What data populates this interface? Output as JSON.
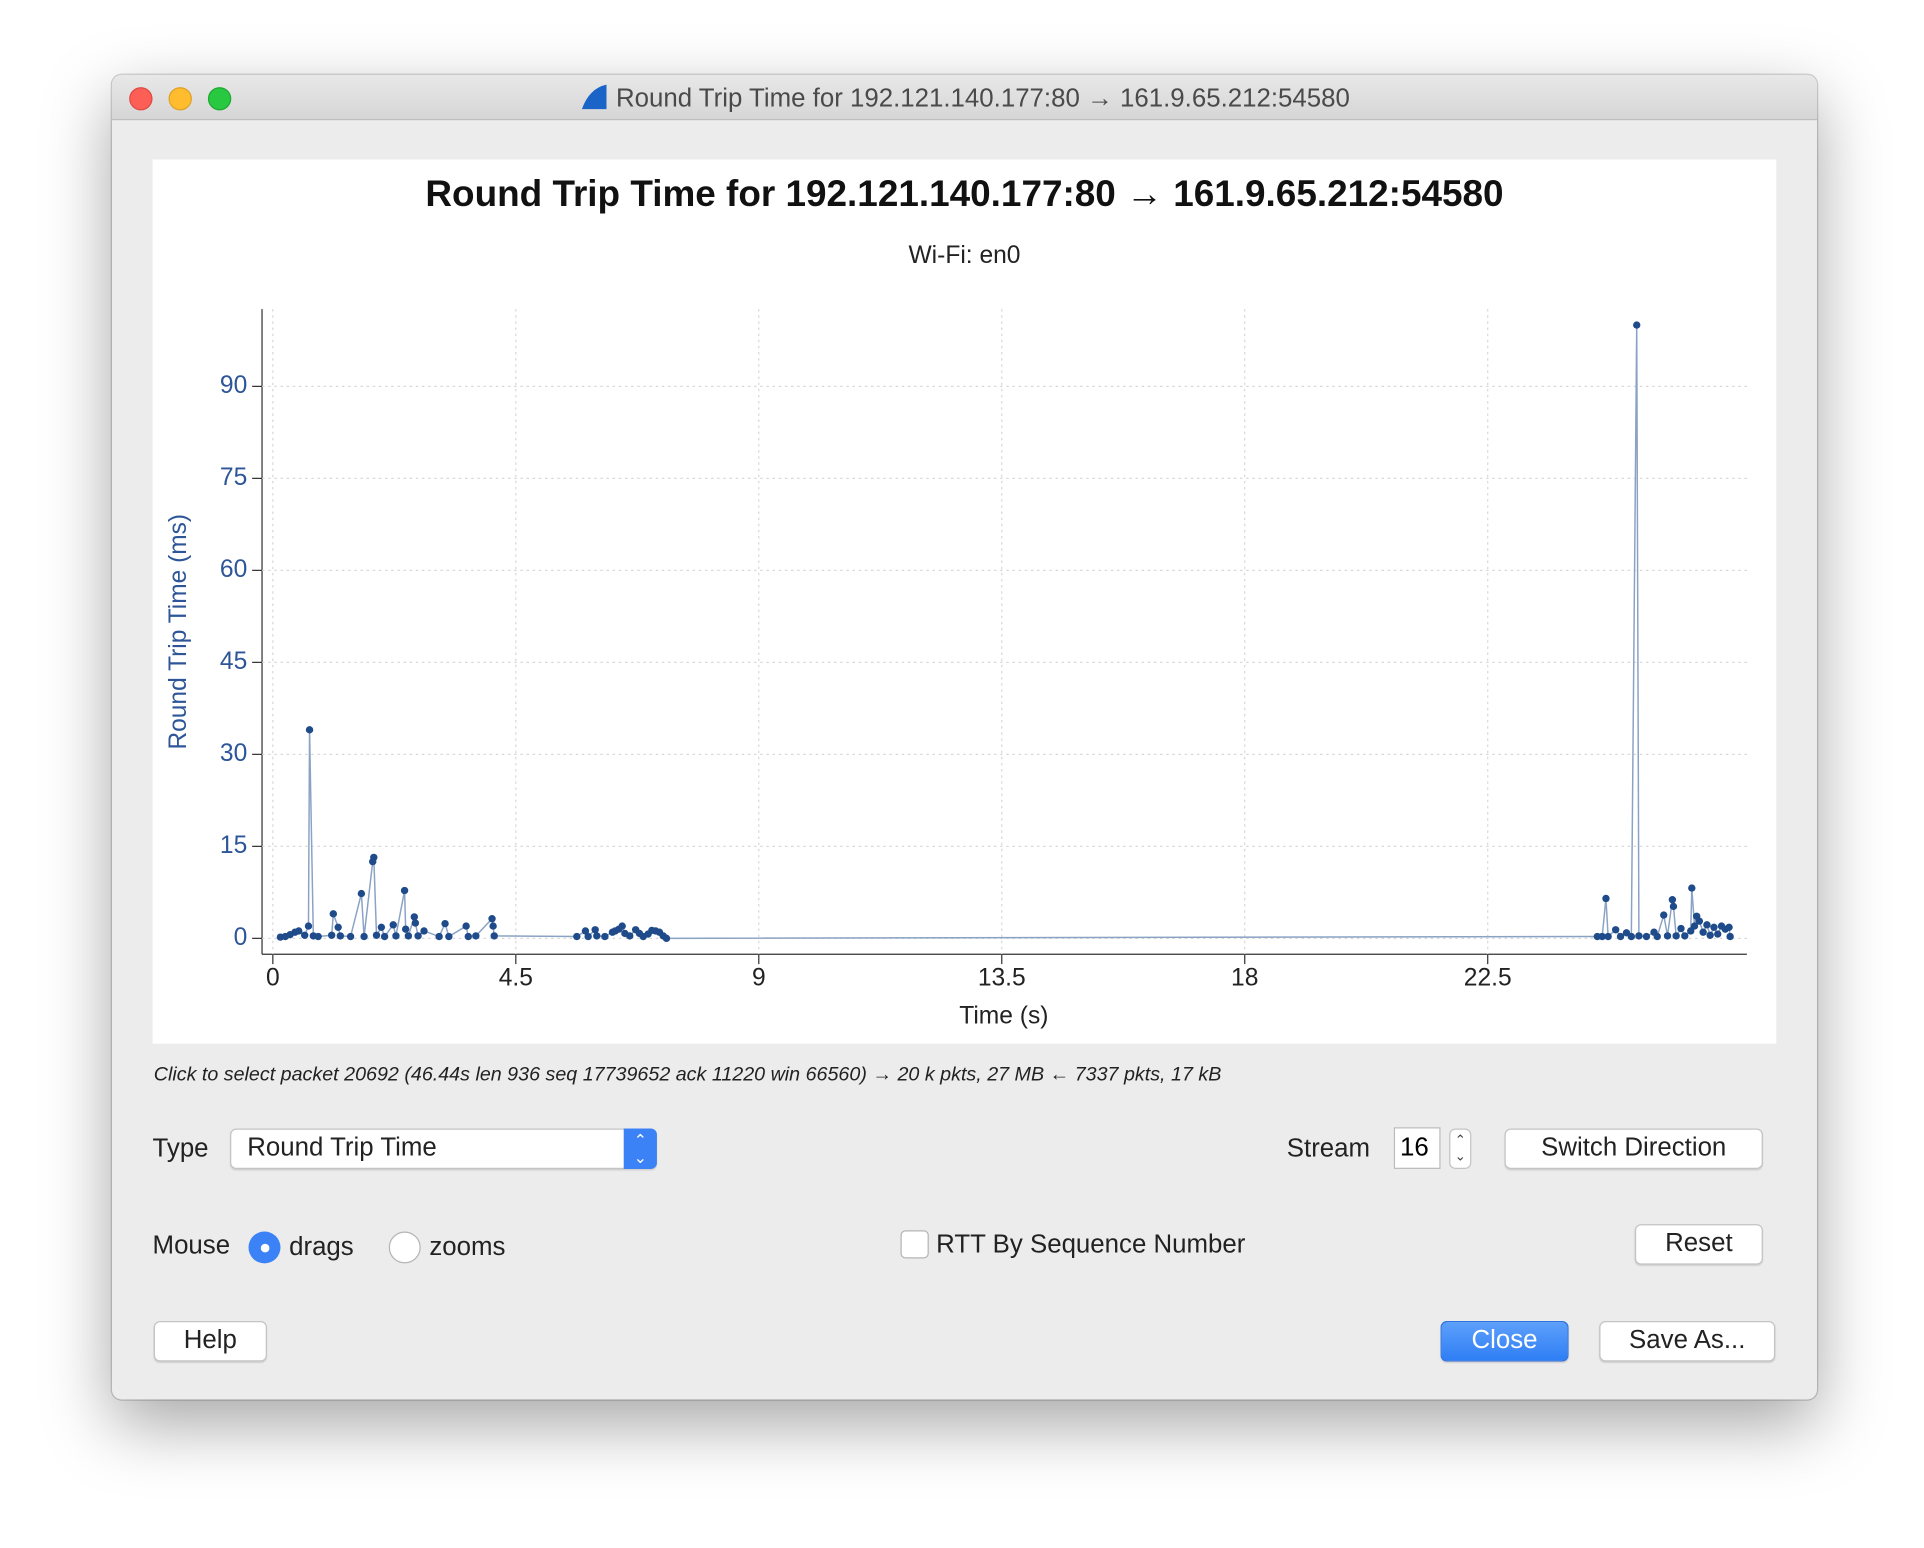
{
  "window": {
    "title": "Round Trip Time for 192.121.140.177:80 → 161.9.65.212:54580"
  },
  "chart_data": {
    "type": "line",
    "title": "Round Trip Time for 192.121.140.177:80 → 161.9.65.212:54580",
    "subtitle": "Wi-Fi: en0",
    "x_label": "Time (s)",
    "y_label": "Round Trip Time (ms)",
    "color": "#1f4b8a",
    "markers": true,
    "grid": true,
    "x": [
      0.14,
      0.23,
      0.32,
      0.41,
      0.48,
      0.59,
      0.66,
      0.68,
      0.75,
      0.84,
      1.09,
      1.12,
      1.21,
      1.25,
      1.44,
      1.64,
      1.69,
      1.85,
      1.87,
      1.92,
      2.01,
      2.07,
      2.23,
      2.28,
      2.44,
      2.46,
      2.51,
      2.62,
      2.64,
      2.69,
      2.8,
      3.08,
      3.19,
      3.26,
      3.58,
      3.62,
      3.76,
      4.06,
      4.08,
      4.1,
      5.63,
      5.79,
      5.84,
      5.97,
      6.0,
      6.15,
      6.29,
      6.34,
      6.41,
      6.47,
      6.52,
      6.61,
      6.72,
      6.79,
      6.86,
      6.95,
      7.02,
      7.09,
      7.16,
      7.23,
      7.29,
      24.53,
      24.62,
      24.69,
      24.73,
      24.87,
      24.96,
      25.07,
      25.16,
      25.26,
      25.3,
      25.44,
      25.58,
      25.64,
      25.76,
      25.83,
      25.92,
      25.94,
      25.99,
      26.08,
      26.15,
      26.26,
      26.28,
      26.33,
      26.37,
      26.42,
      26.49,
      26.56,
      26.62,
      26.69,
      26.76,
      26.83,
      26.9,
      26.97,
      26.99
    ],
    "values": [
      0.2,
      0.3,
      0.6,
      1.0,
      1.2,
      0.5,
      2,
      34,
      0.4,
      0.3,
      0.5,
      4,
      1.8,
      0.4,
      0.3,
      7.3,
      0.3,
      12.5,
      13.2,
      0.5,
      1.8,
      0.3,
      2.2,
      0.4,
      7.8,
      1.5,
      0.4,
      3.5,
      2.5,
      0.4,
      1.2,
      0.3,
      2.4,
      0.3,
      2.0,
      0.3,
      0.4,
      3.2,
      2.0,
      0.4,
      0.3,
      1.2,
      0.3,
      1.4,
      0.4,
      0.3,
      1.0,
      1.2,
      1.5,
      2.0,
      0.8,
      0.4,
      1.4,
      0.8,
      0.3,
      0.7,
      1.3,
      1.2,
      1.0,
      0.4,
      0.0,
      0.3,
      0.3,
      6.5,
      0.3,
      1.4,
      0.3,
      0.9,
      0.3,
      100,
      0.4,
      0.3,
      1.0,
      0.3,
      3.8,
      0.4,
      6.3,
      5.2,
      0.4,
      1.6,
      0.4,
      1.2,
      8.2,
      2.0,
      3.6,
      2.8,
      1.0,
      2.2,
      0.5,
      1.8,
      0.7,
      2.0,
      1.5,
      1.8,
      0.3
    ],
    "xlim": [
      -0.2,
      27.3
    ],
    "ylim": [
      -2.6,
      102.6
    ],
    "xticks": [
      0,
      4.5,
      9,
      13.5,
      18,
      22.5
    ],
    "yticks": [
      0,
      15,
      30,
      45,
      60,
      75,
      90
    ]
  },
  "status": "Click to select packet 20692 (46.44s len 936 seq 17739652 ack 11220 win 66560) → 20 k pkts, 27 MB ← 7337 pkts, 17 kB",
  "controls": {
    "type_label": "Type",
    "type_value": "Round Trip Time",
    "stream_label": "Stream",
    "stream_value": "16",
    "switch_direction": "Switch Direction",
    "mouse_label": "Mouse",
    "mouse_options": [
      "drags",
      "zooms"
    ],
    "rtt_by_seq": "RTT By Sequence Number",
    "reset": "Reset",
    "help": "Help",
    "close": "Close",
    "save_as": "Save As..."
  }
}
